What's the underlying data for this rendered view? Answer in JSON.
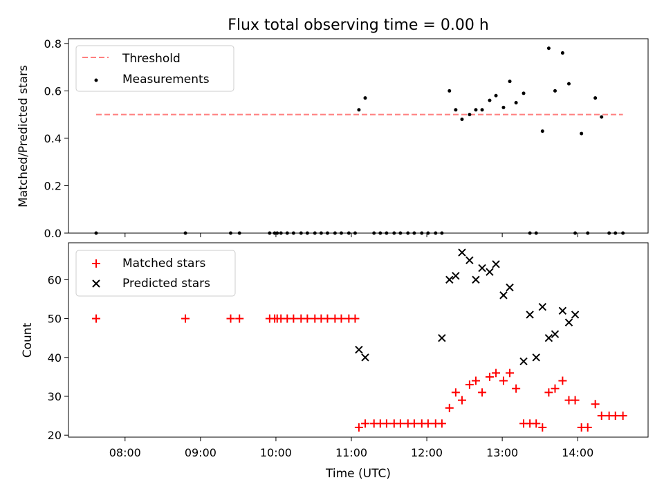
{
  "chart_data": [
    {
      "type": "scatter",
      "title": "Flux total observing time = 0.00 h",
      "xlabel": "",
      "ylabel": "Matched/Predicted stars",
      "ylim": [
        0,
        0.82
      ],
      "yticks": [
        "0.0",
        "0.2",
        "0.4",
        "0.6",
        "0.8"
      ],
      "legend_position": "top-left",
      "threshold": {
        "name": "Threshold",
        "value": 0.5,
        "x_range": [
          "07:37",
          "14:36"
        ],
        "color": "#ff7f7f",
        "style": "dashed"
      },
      "series": [
        {
          "name": "Measurements",
          "color": "#000000",
          "marker": "dot",
          "x": [
            "07:37",
            "08:48",
            "09:24",
            "09:31",
            "09:55",
            "09:59",
            "10:01",
            "10:04",
            "10:09",
            "10:14",
            "10:20",
            "10:25",
            "10:31",
            "10:36",
            "10:41",
            "10:47",
            "10:52",
            "10:58",
            "11:03",
            "11:06",
            "11:11",
            "11:18",
            "11:23",
            "11:28",
            "11:34",
            "11:39",
            "11:45",
            "11:50",
            "11:56",
            "12:01",
            "12:07",
            "12:12",
            "12:18",
            "12:23",
            "12:28",
            "12:34",
            "12:39",
            "12:44",
            "12:50",
            "12:55",
            "13:01",
            "13:06",
            "13:11",
            "13:17",
            "13:22",
            "13:27",
            "13:32",
            "13:37",
            "13:42",
            "13:48",
            "13:53",
            "13:58",
            "14:03",
            "14:08",
            "14:14",
            "14:19",
            "14:25",
            "14:30",
            "14:36"
          ],
          "y": [
            0,
            0,
            0,
            0,
            0,
            0,
            0,
            0,
            0,
            0,
            0,
            0,
            0,
            0,
            0,
            0,
            0,
            0,
            0,
            0.52,
            0.57,
            0,
            0,
            0,
            0,
            0,
            0,
            0,
            0,
            0,
            0,
            0,
            0.6,
            0.52,
            0.48,
            0.5,
            0.52,
            0.52,
            0.56,
            0.58,
            0.53,
            0.64,
            0.55,
            0.59,
            0,
            0,
            0.43,
            0.78,
            0.6,
            0.76,
            0.63,
            0,
            0.42,
            0,
            0.57,
            0.49,
            0,
            0,
            0
          ]
        }
      ]
    },
    {
      "type": "scatter",
      "xlabel": "Time (UTC)",
      "ylabel": "Count",
      "ylim": [
        19.5,
        69.5
      ],
      "yticks": [
        "20",
        "30",
        "40",
        "50",
        "60"
      ],
      "xlim": [
        "07:15",
        "14:56"
      ],
      "xticks": [
        "08:00",
        "09:00",
        "10:00",
        "11:00",
        "12:00",
        "13:00",
        "14:00"
      ],
      "legend_position": "top-left",
      "series": [
        {
          "name": "Matched stars",
          "color": "#ff0000",
          "marker": "plus",
          "x": [
            "07:37",
            "08:48",
            "09:24",
            "09:31",
            "09:55",
            "09:59",
            "10:01",
            "10:04",
            "10:09",
            "10:14",
            "10:20",
            "10:25",
            "10:31",
            "10:36",
            "10:41",
            "10:47",
            "10:52",
            "10:58",
            "11:03",
            "11:06",
            "11:11",
            "11:18",
            "11:23",
            "11:28",
            "11:34",
            "11:39",
            "11:45",
            "11:50",
            "11:56",
            "12:01",
            "12:07",
            "12:12",
            "12:18",
            "12:23",
            "12:28",
            "12:34",
            "12:39",
            "12:44",
            "12:50",
            "12:55",
            "13:01",
            "13:06",
            "13:11",
            "13:17",
            "13:22",
            "13:27",
            "13:32",
            "13:37",
            "13:42",
            "13:48",
            "13:53",
            "13:58",
            "14:03",
            "14:08",
            "14:14",
            "14:19",
            "14:25",
            "14:30",
            "14:36"
          ],
          "y": [
            50,
            50,
            50,
            50,
            50,
            50,
            50,
            50,
            50,
            50,
            50,
            50,
            50,
            50,
            50,
            50,
            50,
            50,
            50,
            22,
            23,
            23,
            23,
            23,
            23,
            23,
            23,
            23,
            23,
            23,
            23,
            23,
            27,
            31,
            29,
            33,
            34,
            31,
            35,
            36,
            34,
            36,
            32,
            23,
            23,
            23,
            22,
            31,
            32,
            34,
            29,
            29,
            22,
            22,
            28,
            25,
            25,
            25,
            25
          ]
        },
        {
          "name": "Predicted stars",
          "color": "#000000",
          "marker": "x",
          "x": [
            "11:06",
            "11:11",
            "12:12",
            "12:18",
            "12:23",
            "12:28",
            "12:34",
            "12:39",
            "12:44",
            "12:50",
            "12:55",
            "13:01",
            "13:06",
            "13:17",
            "13:22",
            "13:27",
            "13:32",
            "13:37",
            "13:42",
            "13:48",
            "13:53",
            "13:58"
          ],
          "y": [
            42,
            40,
            45,
            60,
            61,
            67,
            65,
            60,
            63,
            62,
            64,
            56,
            58,
            39,
            51,
            40,
            53,
            45,
            46,
            52,
            49,
            51
          ]
        }
      ]
    }
  ]
}
